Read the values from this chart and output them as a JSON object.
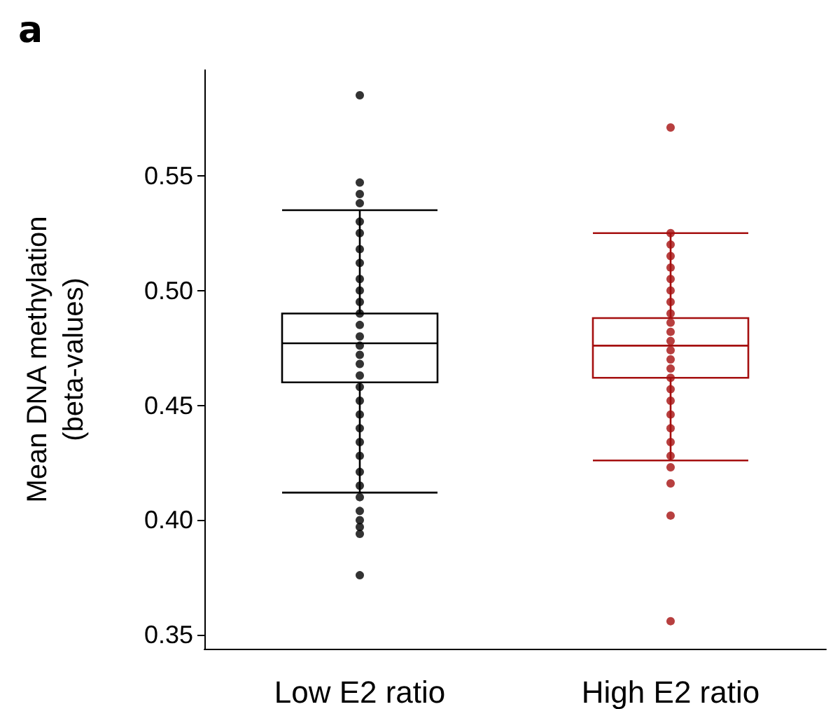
{
  "chart_data": {
    "type": "box",
    "title": "a",
    "ylabel": "Mean DNA methylation\n(beta-values)",
    "categories": [
      "Low E2 ratio",
      "High E2 ratio"
    ],
    "colors": [
      "#000000",
      "#a50f0f"
    ],
    "boxes": [
      {
        "low": 0.412,
        "q1": 0.46,
        "median": 0.477,
        "q3": 0.49,
        "high": 0.535
      },
      {
        "low": 0.426,
        "q1": 0.462,
        "median": 0.476,
        "q3": 0.488,
        "high": 0.525
      }
    ],
    "ylim": [
      0.344,
      0.596
    ],
    "yticks": [
      0.35,
      {
        "value": 0.4,
        "label": "0.40"
      },
      0.45,
      {
        "value": 0.5,
        "label": "0.50"
      },
      0.55
    ],
    "series": [
      {
        "type": "scatter",
        "color": "#000000",
        "x": [
          "Low E2 ratio",
          "Low E2 ratio",
          "Low E2 ratio",
          "Low E2 ratio",
          "Low E2 ratio",
          "Low E2 ratio",
          "Low E2 ratio",
          "Low E2 ratio",
          "Low E2 ratio",
          "Low E2 ratio",
          "Low E2 ratio",
          "Low E2 ratio",
          "Low E2 ratio",
          "Low E2 ratio",
          "Low E2 ratio",
          "Low E2 ratio",
          "Low E2 ratio",
          "Low E2 ratio",
          "Low E2 ratio",
          "Low E2 ratio",
          "Low E2 ratio",
          "Low E2 ratio",
          "Low E2 ratio",
          "Low E2 ratio",
          "Low E2 ratio",
          "Low E2 ratio",
          "Low E2 ratio",
          "Low E2 ratio",
          "Low E2 ratio",
          "Low E2 ratio",
          "Low E2 ratio",
          "Low E2 ratio"
        ],
        "values": [
          0.585,
          0.547,
          0.542,
          0.538,
          0.53,
          0.525,
          0.518,
          0.512,
          0.505,
          0.5,
          0.495,
          0.49,
          0.485,
          0.48,
          0.476,
          0.472,
          0.468,
          0.463,
          0.458,
          0.452,
          0.446,
          0.44,
          0.434,
          0.428,
          0.421,
          0.415,
          0.41,
          0.404,
          0.4,
          0.397,
          0.394,
          0.376
        ]
      },
      {
        "type": "scatter",
        "color": "#a50f0f",
        "x": [
          "High E2 ratio",
          "High E2 ratio",
          "High E2 ratio",
          "High E2 ratio",
          "High E2 ratio",
          "High E2 ratio",
          "High E2 ratio",
          "High E2 ratio",
          "High E2 ratio",
          "High E2 ratio",
          "High E2 ratio",
          "High E2 ratio",
          "High E2 ratio",
          "High E2 ratio",
          "High E2 ratio",
          "High E2 ratio",
          "High E2 ratio",
          "High E2 ratio",
          "High E2 ratio",
          "High E2 ratio",
          "High E2 ratio",
          "High E2 ratio",
          "High E2 ratio",
          "High E2 ratio",
          "High E2 ratio",
          "High E2 ratio"
        ],
        "values": [
          0.571,
          0.525,
          0.52,
          0.515,
          0.51,
          0.505,
          0.5,
          0.495,
          0.49,
          0.486,
          0.482,
          0.478,
          0.474,
          0.47,
          0.466,
          0.462,
          0.457,
          0.452,
          0.446,
          0.44,
          0.434,
          0.428,
          0.423,
          0.416,
          0.402,
          0.356
        ]
      }
    ]
  }
}
